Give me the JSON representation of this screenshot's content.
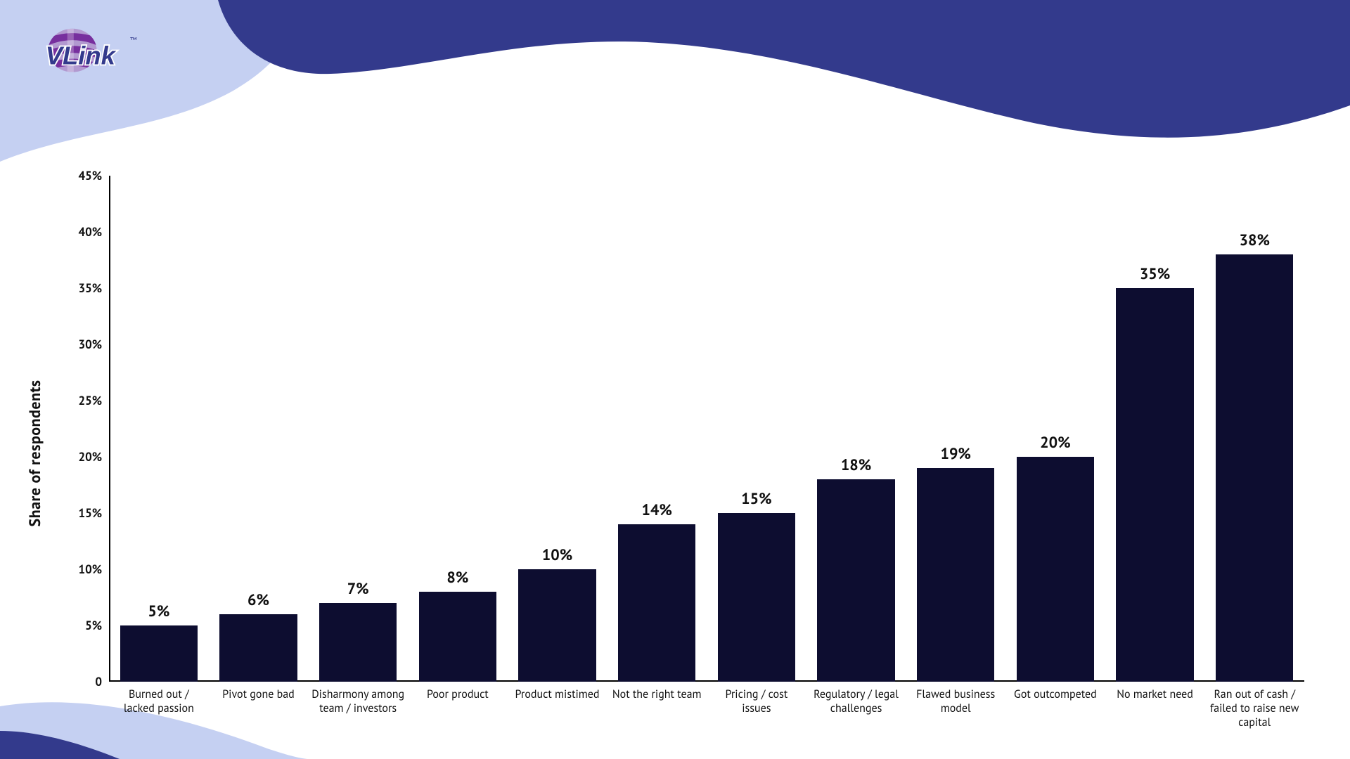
{
  "brand": {
    "name": "VLink",
    "logo_globe_primary": "#772f9e",
    "logo_globe_secondary": "#b299d0",
    "logo_text_color": "#333a8c",
    "tm": "™"
  },
  "background": {
    "page_bg": "#ffffff",
    "wave_dark": "#333a8c",
    "wave_light": "#c5d0f2"
  },
  "chart": {
    "type": "bar",
    "ylabel": "Share of  respondents",
    "ylabel_fontsize": 22,
    "value_label_fontsize": 22,
    "tick_label_fontsize": 17,
    "cat_label_fontsize": 16,
    "axis_color": "#000000",
    "text_color": "#111111",
    "bar_color": "#0d0d30",
    "bar_width_pct": 78,
    "ylim": [
      0,
      45
    ],
    "ytick_step": 5,
    "ytick_suffix": "%",
    "y_zero_label": "0",
    "categories": [
      "Burned out / lacked passion",
      "Pivot gone bad",
      "Disharmony among team / investors",
      "Poor product",
      "Product mistimed",
      "Not the right team",
      "Pricing / cost issues",
      "Regulatory / legal challenges",
      "Flawed business model",
      "Got outcompeted",
      "No market need",
      "Ran out of cash / failed to raise new capital"
    ],
    "values": [
      5,
      6,
      7,
      8,
      10,
      14,
      15,
      18,
      19,
      20,
      35,
      38
    ],
    "value_suffix": "%"
  }
}
